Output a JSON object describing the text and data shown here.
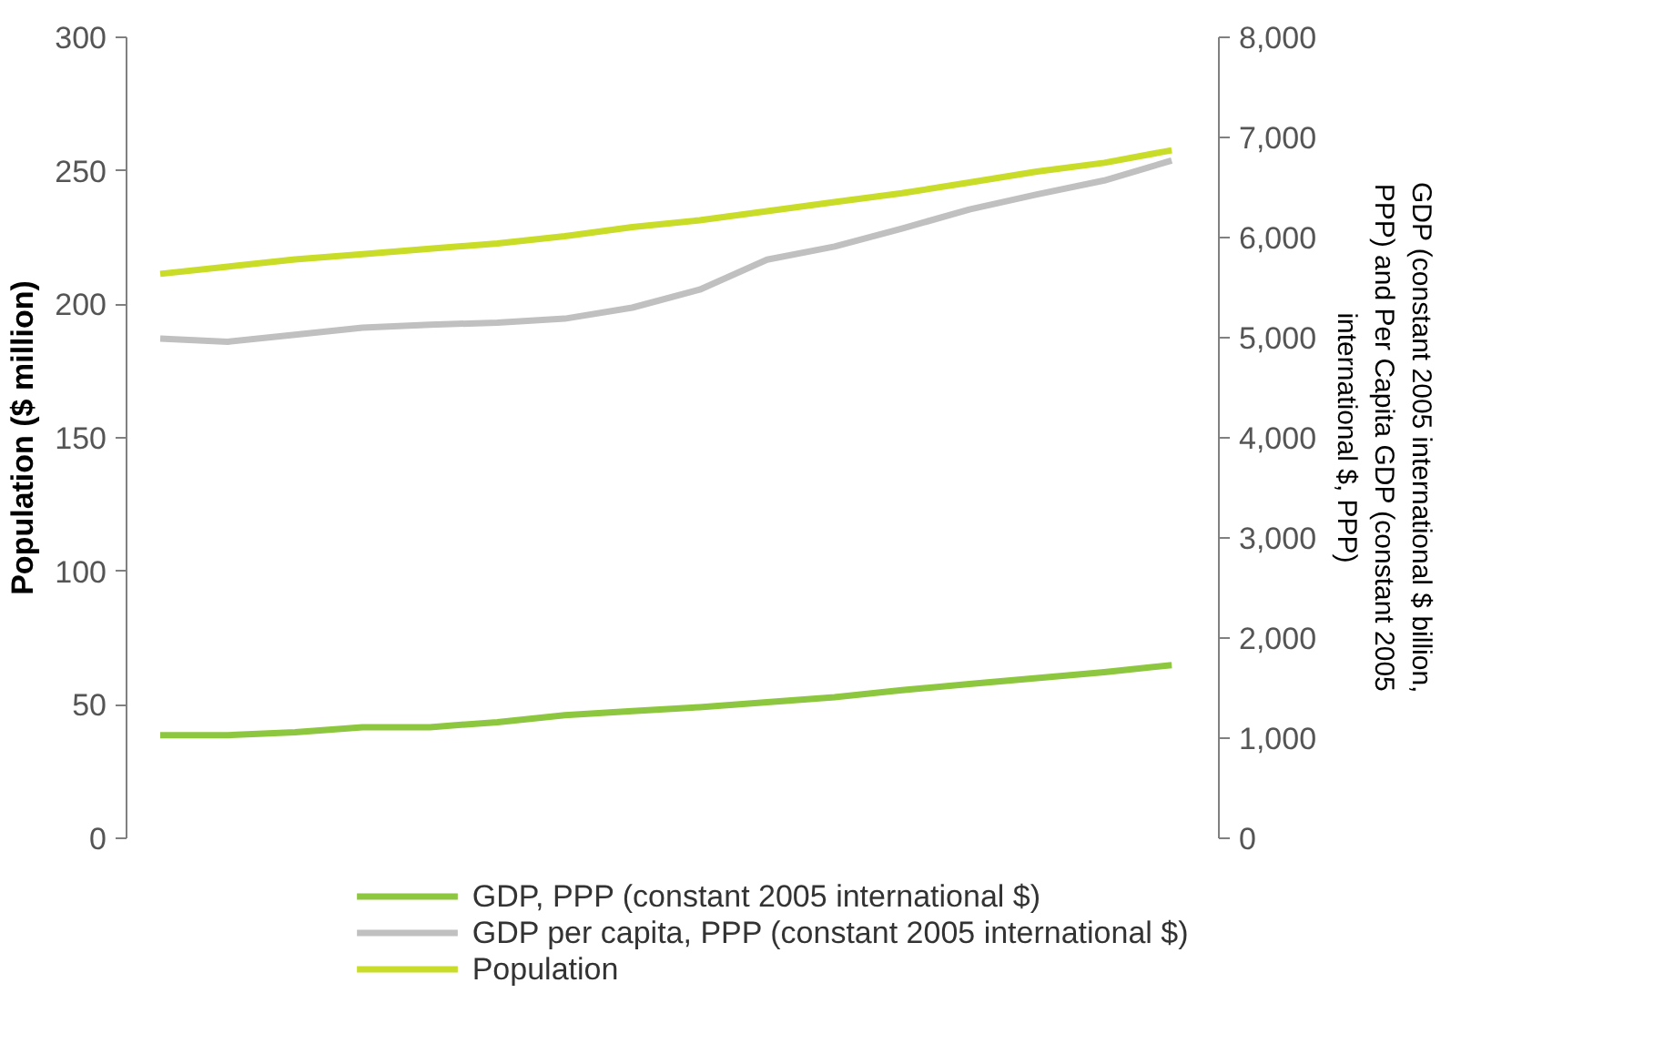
{
  "chart_data": {
    "type": "line",
    "categories": [
      null,
      null,
      null,
      null,
      null,
      null,
      null,
      null,
      null,
      null,
      null,
      null,
      null,
      null,
      null,
      null
    ],
    "series": [
      {
        "name": "GDP, PPP (constant 2005 international $)",
        "color": "#8dc63f",
        "axis": "y2",
        "values": [
          1030,
          1030,
          1060,
          1110,
          1110,
          1160,
          1230,
          1270,
          1310,
          1360,
          1410,
          1480,
          1540,
          1600,
          1660,
          1730
        ]
      },
      {
        "name": "GDP per capita, PPP (constant 2005 international $)",
        "color": "#c0c0c0",
        "axis": "y2",
        "values": [
          4990,
          4960,
          5030,
          5100,
          5130,
          5150,
          5190,
          5300,
          5480,
          5780,
          5910,
          6090,
          6280,
          6430,
          6570,
          6770
        ]
      },
      {
        "name": "Population",
        "color": "#c8dc28",
        "values": [
          211.4,
          214.1,
          216.8,
          218.8,
          220.8,
          222.8,
          225.5,
          228.9,
          231.5,
          234.9,
          238.3,
          241.6,
          245.6,
          249.7,
          253.0,
          257.7
        ]
      }
    ],
    "ylabel": "Population ($ million)",
    "y2label": "GDP (constant 2005 international $ billion, PPP) and Per Capita GDP (constant 2005 international $, PPP)",
    "ylim": [
      0,
      300
    ],
    "yticks": [
      0,
      50,
      100,
      150,
      200,
      250,
      300
    ],
    "y2lim": [
      0,
      8000
    ],
    "y2ticks": [
      0,
      {
        "value": 1000,
        "label": "1,000"
      },
      {
        "value": 2000,
        "label": "2,000"
      },
      {
        "value": 3000,
        "label": "3,000"
      },
      {
        "value": 4000,
        "label": "4,000"
      },
      {
        "value": 5000,
        "label": "5,000"
      },
      {
        "value": 6000,
        "label": "6,000"
      },
      {
        "value": 7000,
        "label": "7,000"
      },
      {
        "value": 8000,
        "label": "8,000"
      }
    ],
    "grid": false,
    "legend": "bottom",
    "line_style": "solid",
    "marker": "none",
    "tick_labels": "y"
  }
}
